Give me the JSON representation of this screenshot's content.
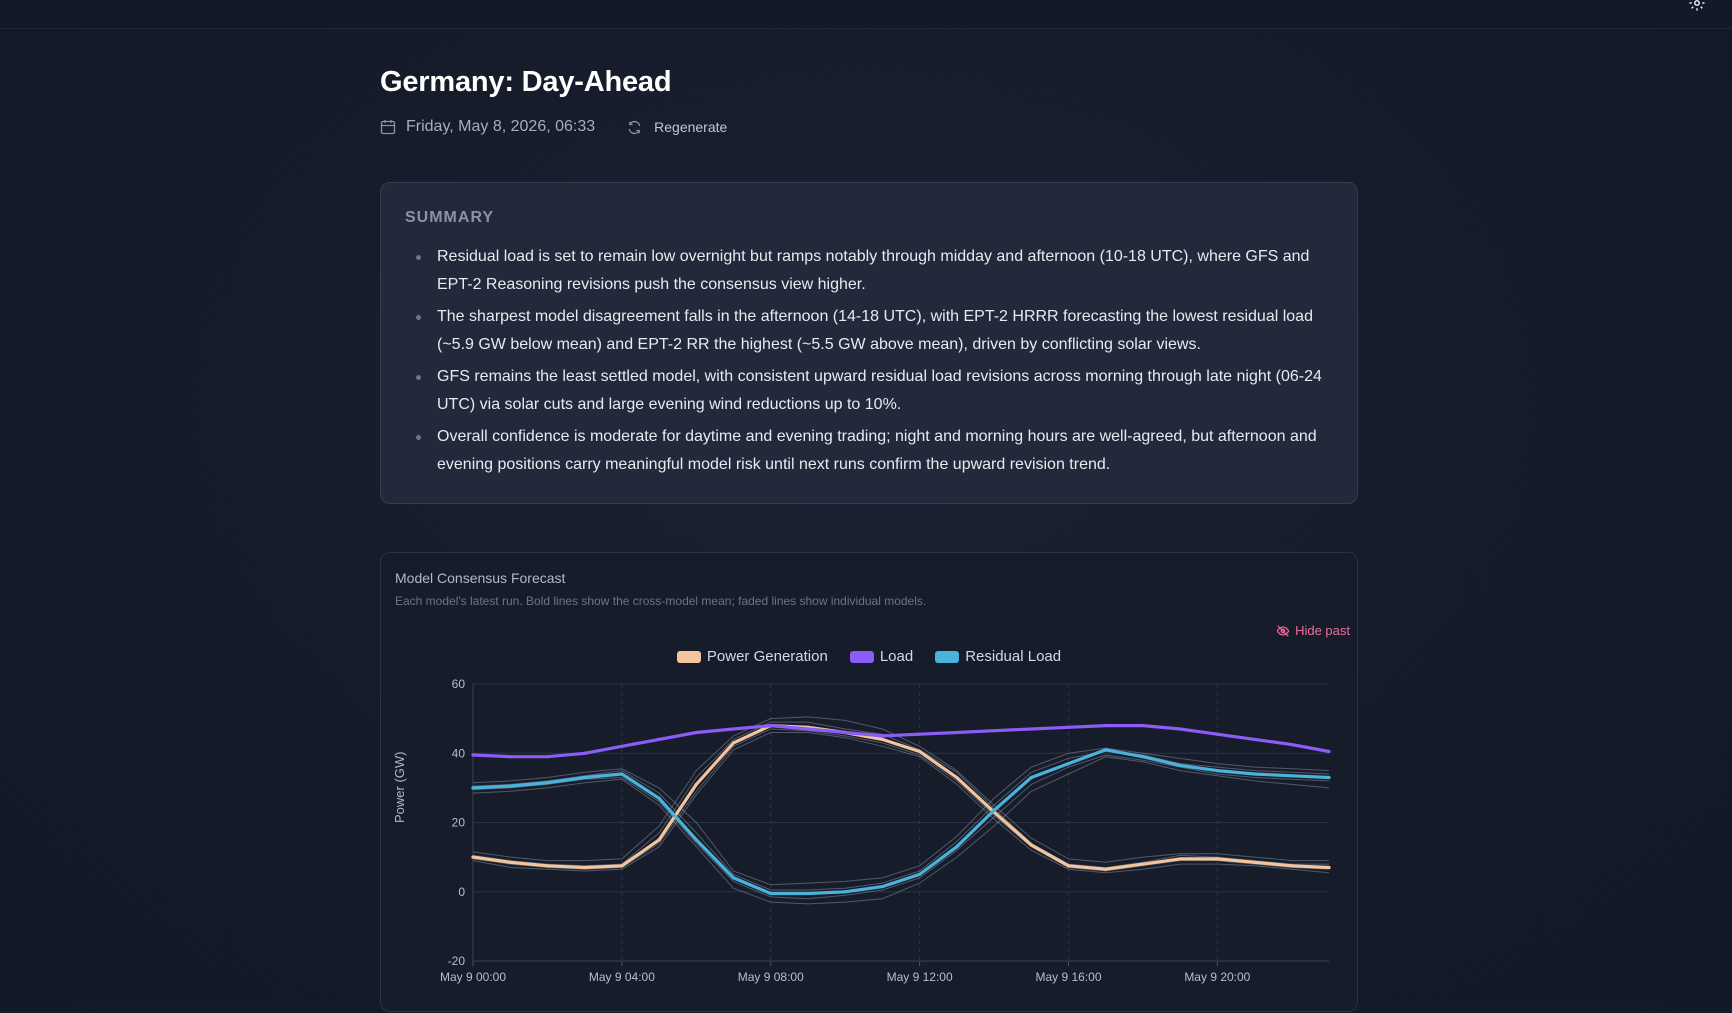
{
  "page": {
    "title": "Germany: Day-Ahead",
    "date": "Friday, May 8, 2026, 06:33",
    "regenerate_label": "Regenerate"
  },
  "icons": {
    "settings": "gear-icon",
    "date": "calendar-icon",
    "regenerate": "refresh-icon",
    "hide_past": "eye-off-icon"
  },
  "summary": {
    "heading": "SUMMARY",
    "items": [
      "Residual load is set to remain low overnight but ramps notably through midday and afternoon (10-18 UTC), where GFS and EPT-2 Reasoning revisions push the consensus view higher.",
      "The sharpest model disagreement falls in the afternoon (14-18 UTC), with EPT-2 HRRR forecasting the lowest residual load (~5.9 GW below mean) and EPT-2 RR the highest (~5.5 GW above mean), driven by conflicting solar views.",
      "GFS remains the least settled model, with consistent upward residual load revisions across morning through late night (06-24 UTC) via solar cuts and large evening wind reductions up to 10%.",
      "Overall confidence is moderate for daytime and evening trading; night and morning hours are well-agreed, but afternoon and evening positions carry meaningful model risk until next runs confirm the upward revision trend."
    ]
  },
  "chart_card": {
    "title": "Model Consensus Forecast",
    "subtitle": "Each model's latest run. Bold lines show the cross-model mean; faded lines show individual models.",
    "hide_past_label": "Hide past"
  },
  "chart_data": {
    "type": "line",
    "ylabel": "Power (GW)",
    "ylim": [
      -20,
      60
    ],
    "yticks": [
      -20,
      0,
      20,
      40,
      60
    ],
    "x_hours": [
      0,
      1,
      2,
      3,
      4,
      5,
      6,
      7,
      8,
      9,
      10,
      11,
      12,
      13,
      14,
      15,
      16,
      17,
      18,
      19,
      20,
      21,
      22,
      23
    ],
    "x_range_hours": [
      0,
      23
    ],
    "xticks": [
      {
        "hour": 0,
        "label": "May 9 00:00"
      },
      {
        "hour": 4,
        "label": "May 9 04:00"
      },
      {
        "hour": 8,
        "label": "May 9 08:00"
      },
      {
        "hour": 12,
        "label": "May 9 12:00"
      },
      {
        "hour": 16,
        "label": "May 9 16:00"
      },
      {
        "hour": 20,
        "label": "May 9 20:00"
      }
    ],
    "grid": true,
    "legend_position": "top-center",
    "series": [
      {
        "name": "Power Generation",
        "color": "#f4c49c",
        "values": [
          10,
          8.5,
          7.5,
          7,
          7.5,
          15,
          31,
          43,
          48,
          47.5,
          46,
          44,
          40.5,
          33,
          23,
          13.5,
          7.5,
          6.5,
          8,
          9.5,
          9.5,
          8.5,
          7.5,
          7
        ],
        "models": [
          [
            11.5,
            10,
            9,
            9,
            9.5,
            19,
            35,
            45,
            50,
            50.5,
            49.5,
            47,
            42,
            35,
            25,
            15.5,
            9.5,
            8.5,
            10,
            11,
            11,
            10,
            9,
            9
          ],
          [
            9,
            7,
            6.5,
            6,
            6.5,
            13,
            28,
            41,
            46,
            46,
            44.5,
            42,
            39,
            31,
            21,
            12,
            6.5,
            5.5,
            6.5,
            8,
            8,
            7.5,
            6.5,
            5.5
          ],
          [
            10.5,
            9,
            8,
            7.5,
            8,
            17,
            33,
            44,
            49,
            49,
            47,
            45.5,
            41,
            34.5,
            24,
            14,
            8,
            7,
            8.5,
            10.5,
            10,
            9,
            8,
            8
          ],
          [
            9.5,
            8,
            7,
            6.5,
            7,
            14,
            29,
            42,
            47,
            46.5,
            45,
            43,
            39.5,
            32,
            22,
            13,
            7,
            6,
            7.5,
            9,
            9,
            8,
            7,
            6.5
          ]
        ]
      },
      {
        "name": "Load",
        "color": "#8b5cf6",
        "values": [
          39.5,
          39,
          39,
          40,
          42,
          44,
          46,
          47,
          48,
          47,
          46,
          45,
          45.5,
          46,
          46.5,
          47,
          47.5,
          48,
          48,
          47,
          45.5,
          44,
          42.5,
          40.5
        ],
        "models": []
      },
      {
        "name": "Residual Load",
        "color": "#4ab3dc",
        "values": [
          30,
          30.5,
          31.5,
          33,
          34,
          27,
          15,
          4,
          -0.5,
          -0.5,
          0,
          1.5,
          5,
          13,
          23.5,
          33,
          37,
          41,
          39,
          36.5,
          35,
          34,
          33.5,
          33
        ],
        "models": [
          [
            31.5,
            32,
            33,
            34.5,
            35.5,
            30,
            20,
            6,
            2,
            2.5,
            3,
            4,
            7.5,
            16,
            27,
            36,
            40,
            41.5,
            40,
            38.5,
            37,
            36,
            35.5,
            35
          ],
          [
            28.5,
            29,
            30,
            31.5,
            32.5,
            25,
            13,
            1,
            -3,
            -3.5,
            -3,
            -2,
            2.5,
            10,
            19,
            29,
            34,
            39,
            37.5,
            35,
            33.5,
            32,
            31,
            30
          ],
          [
            30.5,
            31,
            32,
            33.5,
            35,
            28.5,
            17,
            5,
            0.5,
            0.5,
            1,
            2.5,
            6,
            14.5,
            25,
            34.5,
            38.5,
            40.5,
            39.5,
            37,
            36,
            35,
            34.5,
            34
          ],
          [
            29.5,
            30,
            31,
            32.5,
            33,
            26,
            14,
            3,
            -1.5,
            -2,
            -1,
            0.5,
            4,
            12,
            21.5,
            31,
            36,
            39.5,
            38,
            36,
            34,
            33,
            32.5,
            32
          ]
        ]
      }
    ]
  }
}
